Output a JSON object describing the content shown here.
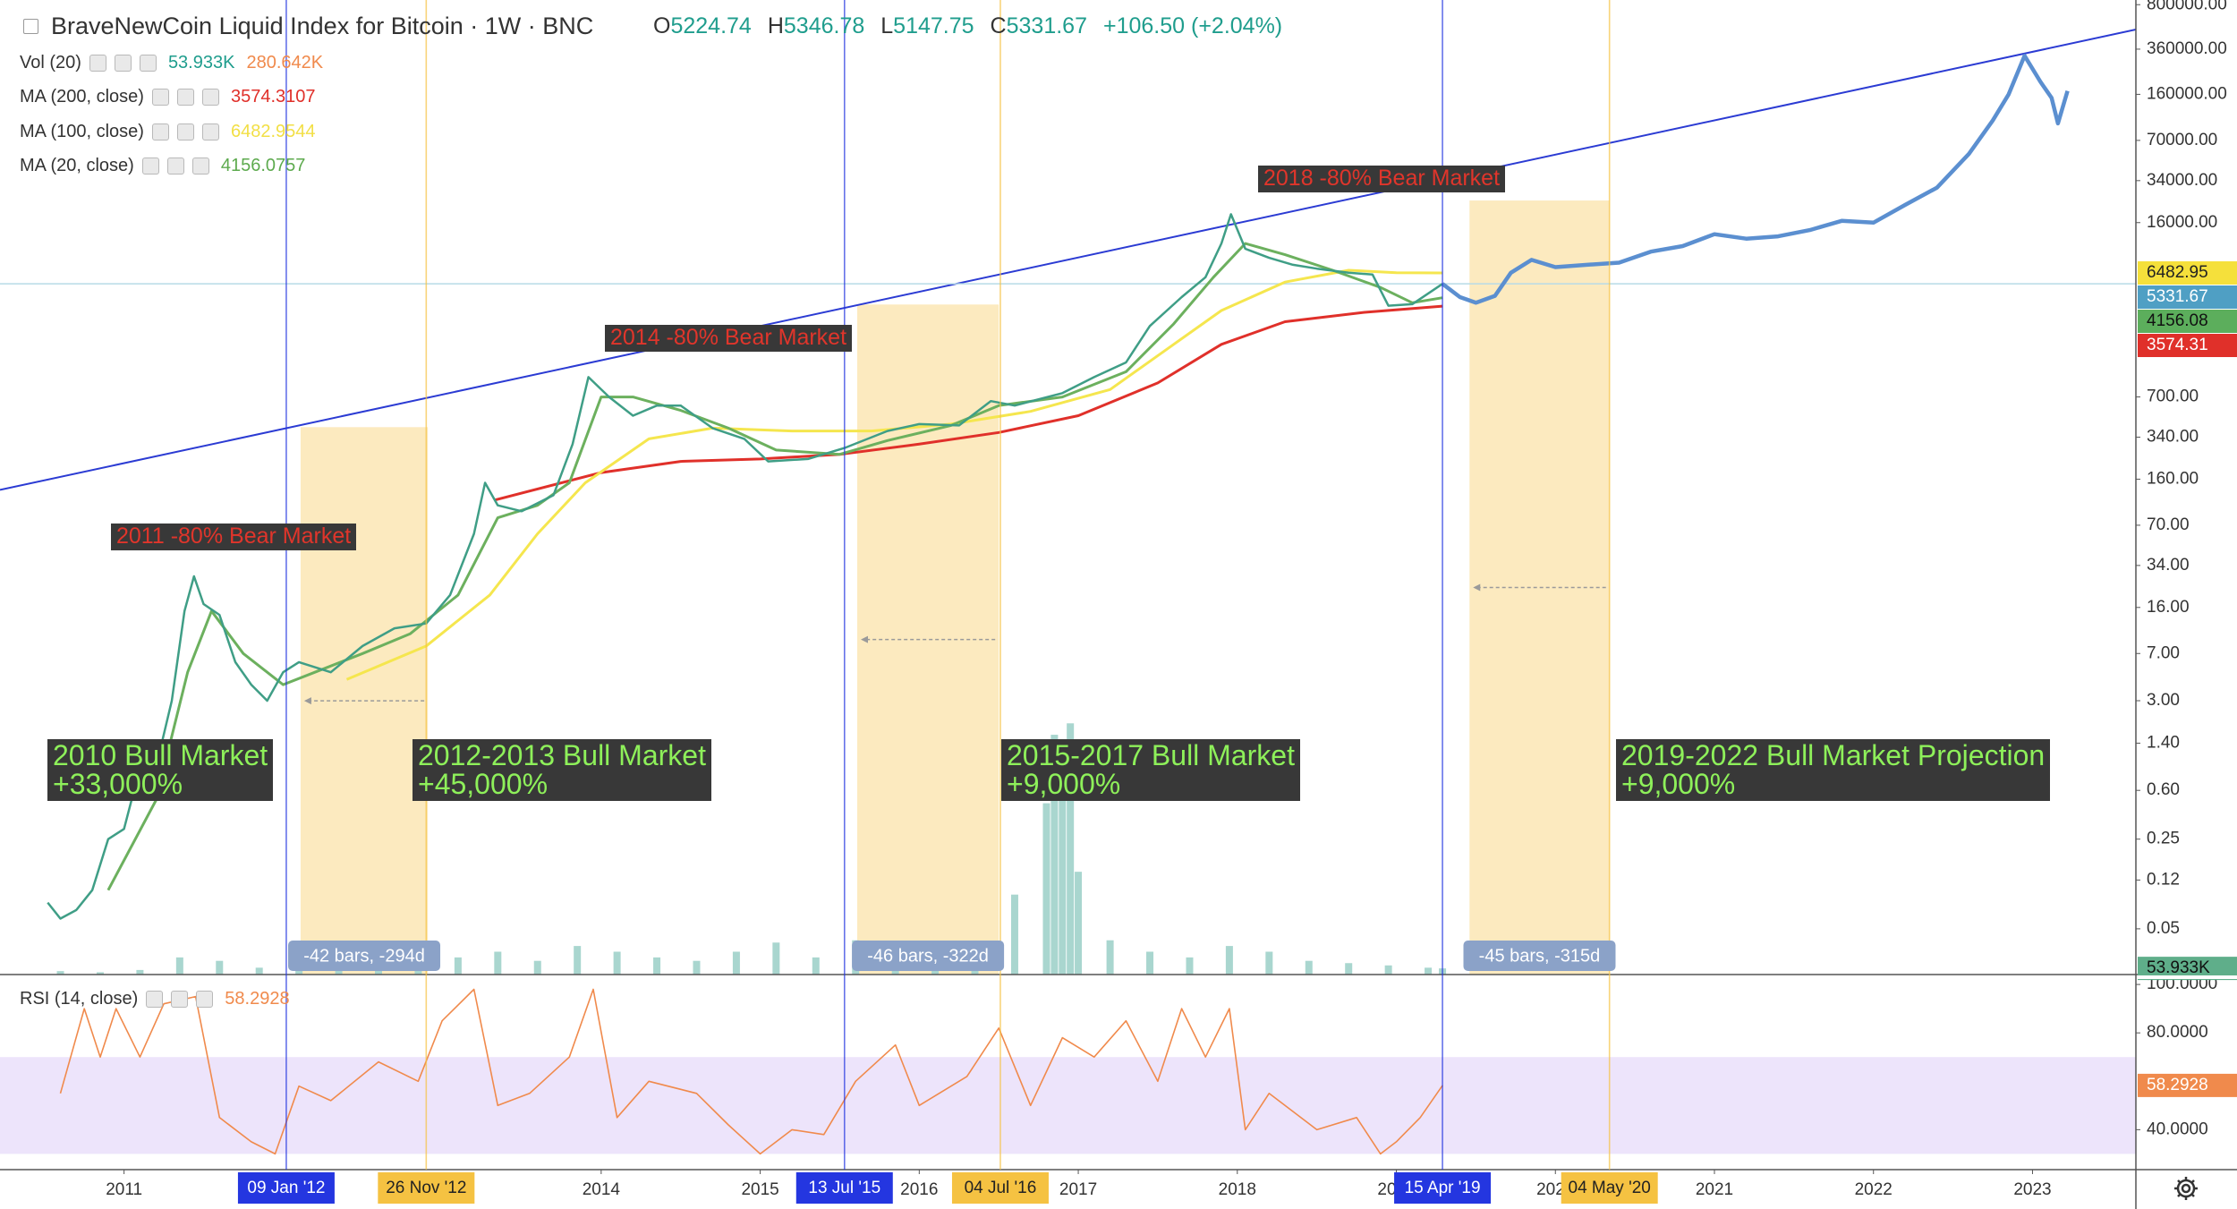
{
  "chart_data": {
    "type": "line",
    "scale": "log",
    "title": "BraveNewCoin Liquid Index for Bitcoin · 1W · BNC",
    "ohlc": [
      {
        "label": "O",
        "value": 5224.74
      },
      {
        "label": "H",
        "value": 5346.78
      },
      {
        "label": "L",
        "value": 5147.75
      },
      {
        "label": "C",
        "value": 5331.67
      }
    ],
    "change": "+106.50 (+2.04%)",
    "ohlc_color": "#1f9d8d",
    "xlim": [
      2010.22,
      2023.65
    ],
    "xticks": [
      2011,
      2014,
      2015,
      2016,
      2017,
      2018,
      2019,
      2020,
      2021,
      2022,
      2023
    ],
    "ylim": [
      0.022,
      870000
    ],
    "yticks": [
      0.05,
      0.12,
      0.25,
      {
        "value": 0.6,
        "label": "0.60"
      },
      {
        "value": 1.4,
        "label": "1.40"
      },
      {
        "value": 3,
        "label": "3.00"
      },
      {
        "value": 7,
        "label": "7.00"
      },
      {
        "value": 16,
        "label": "16.00"
      },
      {
        "value": 34,
        "label": "34.00"
      },
      {
        "value": 70,
        "label": "70.00"
      },
      {
        "value": 160,
        "label": "160.00"
      },
      {
        "value": 340,
        "label": "340.00"
      },
      {
        "value": 700,
        "label": "700.00"
      },
      {
        "value": 16000,
        "label": "16000.00"
      },
      {
        "value": 34000,
        "label": "34000.00"
      },
      {
        "value": 70000,
        "label": "70000.00"
      },
      {
        "value": 160000,
        "label": "160000.00"
      },
      {
        "value": 360000,
        "label": "360000.00"
      },
      {
        "value": 800000,
        "label": "800000.00"
      }
    ],
    "series": [
      {
        "color": "#3f9e86",
        "x": [
          2010.52,
          2010.6,
          2010.7,
          2010.8,
          2010.9,
          2011.0,
          2011.1,
          2011.2,
          2011.3,
          2011.38,
          2011.44,
          2011.5,
          2011.6,
          2011.7,
          2011.8,
          2011.9,
          2012.0,
          2012.1,
          2012.3,
          2012.5,
          2012.7,
          2012.9,
          2013.05,
          2013.2,
          2013.27,
          2013.35,
          2013.5,
          2013.7,
          2013.82,
          2013.92,
          2014.05,
          2014.2,
          2014.35,
          2014.5,
          2014.7,
          2014.9,
          2015.05,
          2015.3,
          2015.53,
          2015.8,
          2016.0,
          2016.25,
          2016.45,
          2016.6,
          2016.9,
          2017.1,
          2017.3,
          2017.45,
          2017.65,
          2017.8,
          2017.9,
          2017.96,
          2018.05,
          2018.2,
          2018.35,
          2018.5,
          2018.7,
          2018.85,
          2018.95,
          2019.1,
          2019.29
        ],
        "values": [
          0.08,
          0.06,
          0.07,
          0.1,
          0.25,
          0.3,
          0.9,
          0.9,
          3,
          15,
          28,
          17,
          14,
          6,
          4,
          3,
          5,
          6,
          5,
          8,
          11,
          12,
          20,
          60,
          150,
          100,
          90,
          120,
          300,
          1000,
          700,
          500,
          600,
          600,
          400,
          330,
          220,
          230,
          280,
          380,
          430,
          420,
          650,
          600,
          750,
          1000,
          1300,
          2500,
          4200,
          6000,
          11000,
          18600,
          10000,
          8500,
          7500,
          7000,
          6500,
          6300,
          3600,
          3700,
          5331.67
        ]
      },
      {
        "color": "#5b8fd0",
        "x": [
          2019.29,
          2019.4,
          2019.5,
          2019.62,
          2019.72,
          2019.85,
          2020.0,
          2020.2,
          2020.4,
          2020.6,
          2020.8,
          2021.0,
          2021.2,
          2021.4,
          2021.6,
          2021.8,
          2022.0,
          2022.2,
          2022.4,
          2022.6,
          2022.75,
          2022.85,
          2022.95,
          2023.05,
          2023.12,
          2023.16,
          2023.22
        ],
        "values": [
          5331.67,
          4200,
          3800,
          4300,
          6500,
          8200,
          7200,
          7500,
          7800,
          9500,
          10500,
          13000,
          12000,
          12500,
          14000,
          16500,
          16000,
          22000,
          30000,
          55000,
          100000,
          160000,
          320000,
          200000,
          150000,
          95000,
          170000
        ]
      }
    ],
    "indicators": [
      {
        "name": "Vol (20)",
        "readings": [
          "53.933K",
          "280.642K"
        ],
        "reading_colors": [
          "#1f9d8d",
          "#f08a4c"
        ],
        "color": "#a9d6cf",
        "ylim": [
          0,
          2500000
        ],
        "x": [
          2010.6,
          2010.85,
          2011.1,
          2011.35,
          2011.6,
          2011.85,
          2012.1,
          2012.35,
          2012.6,
          2012.85,
          2013.1,
          2013.35,
          2013.6,
          2013.85,
          2014.1,
          2014.35,
          2014.6,
          2014.85,
          2015.1,
          2015.35,
          2015.6,
          2015.85,
          2016.1,
          2016.35,
          2016.6,
          2016.8,
          2016.85,
          2016.9,
          2016.95,
          2017.0,
          2017.2,
          2017.45,
          2017.7,
          2017.95,
          2018.2,
          2018.45,
          2018.7,
          2018.95,
          2019.2,
          2019.29
        ],
        "values": [
          30000,
          20000,
          40000,
          150000,
          120000,
          60000,
          50000,
          60000,
          80000,
          90000,
          150000,
          200000,
          120000,
          250000,
          200000,
          150000,
          120000,
          200000,
          280000,
          150000,
          300000,
          250000,
          200000,
          150000,
          700000,
          1500000,
          2100000,
          1800000,
          2200000,
          900000,
          300000,
          200000,
          150000,
          250000,
          200000,
          120000,
          100000,
          80000,
          60000,
          53933
        ]
      },
      {
        "name": "MA (200, close)",
        "readings": [
          3574.3107
        ],
        "reading_colors": [
          "#e0302a"
        ],
        "color": "#e0302a",
        "x": [
          2013.33,
          2014.0,
          2014.5,
          2015.0,
          2015.5,
          2016.0,
          2016.5,
          2017.0,
          2017.5,
          2017.9,
          2018.3,
          2018.8,
          2019.29
        ],
        "values": [
          110,
          180,
          220,
          230,
          250,
          300,
          370,
          500,
          900,
          1800,
          2700,
          3200,
          3574.31
        ]
      },
      {
        "name": "MA (100, close)",
        "readings": [
          6482.9544
        ],
        "reading_colors": [
          "#f2df45"
        ],
        "color": "#f5e64e",
        "x": [
          2012.4,
          2012.9,
          2013.3,
          2013.6,
          2013.9,
          2014.3,
          2014.7,
          2015.2,
          2015.7,
          2016.2,
          2016.7,
          2017.2,
          2017.6,
          2017.9,
          2018.3,
          2018.7,
          2019.0,
          2019.29
        ],
        "values": [
          4.4,
          8,
          20,
          60,
          150,
          330,
          400,
          380,
          380,
          430,
          540,
          800,
          1800,
          3300,
          5500,
          6800,
          6500,
          6482.95
        ]
      },
      {
        "name": "MA (20, close)",
        "readings": [
          4156.0757
        ],
        "reading_colors": [
          "#5daa4e"
        ],
        "color": "#6cb05e",
        "x": [
          2010.9,
          2011.2,
          2011.4,
          2011.55,
          2011.75,
          2012.0,
          2012.2,
          2012.5,
          2012.8,
          2013.1,
          2013.35,
          2013.6,
          2013.8,
          2014.0,
          2014.2,
          2014.5,
          2014.8,
          2015.1,
          2015.5,
          2015.8,
          2016.2,
          2016.5,
          2016.9,
          2017.3,
          2017.6,
          2017.85,
          2018.05,
          2018.3,
          2018.6,
          2018.9,
          2019.1,
          2019.29
        ],
        "values": [
          0.1,
          0.5,
          5,
          15,
          7,
          4,
          5,
          7,
          10,
          20,
          80,
          100,
          150,
          700,
          700,
          550,
          400,
          270,
          250,
          320,
          420,
          600,
          700,
          1100,
          2600,
          6000,
          11000,
          9000,
          6800,
          5000,
          3800,
          4156.08
        ]
      }
    ],
    "price_labels": [
      {
        "value": 6482.95,
        "color": "#f5e03b",
        "text_color": "#222222"
      },
      {
        "value": 5331.67,
        "color": "#4f9fc4",
        "text_color": "#ffffff",
        "line_color": "#b7dbe6"
      },
      {
        "value": 4156.08,
        "color": "#5cae5c",
        "text_color": "#111111"
      },
      {
        "value": 3574.31,
        "color": "#e0302a",
        "text_color": "#ffffff"
      }
    ],
    "vol_label": {
      "value": 53933,
      "label": "53.933K",
      "color": "#5fae8a"
    },
    "trendline": {
      "x": [
        2010.22,
        2023.65
      ],
      "y": [
        132,
        512000
      ],
      "color": "#2b3bd3"
    },
    "annotations": [
      {
        "lines": [
          "2011 -80% Bear Market"
        ],
        "color": "#e0352b",
        "background": "#383838"
      },
      {
        "lines": [
          "2014 -80% Bear Market"
        ],
        "color": "#e0352b",
        "background": "#383838"
      },
      {
        "lines": [
          "2018 -80% Bear Market"
        ],
        "color": "#e0352b",
        "background": "#383838"
      },
      {
        "lines": [
          "2010 Bull Market",
          "+33,000%"
        ],
        "color": "#8ef05a",
        "background": "#383838"
      },
      {
        "lines": [
          "2012-2013 Bull Market",
          "+45,000%"
        ],
        "color": "#8ef05a",
        "background": "#383838"
      },
      {
        "lines": [
          "2015-2017 Bull Market",
          "+9,000%"
        ],
        "color": "#8ef05a",
        "background": "#383838"
      },
      {
        "lines": [
          "2019-2022 Bull Market Projection",
          "+9,000%"
        ],
        "color": "#8ef05a",
        "background": "#383838"
      }
    ],
    "date_markers": [
      {
        "label": "09 Jan '12",
        "x": 2012.02,
        "color": "#2436e0",
        "text_color": "#ffffff"
      },
      {
        "label": "26 Nov '12",
        "x": 2012.9,
        "color": "#f5c242",
        "text_color": "#222222"
      },
      {
        "label": "13 Jul '15",
        "x": 2015.53,
        "color": "#2436e0",
        "text_color": "#ffffff"
      },
      {
        "label": "04 Jul '16",
        "x": 2016.51,
        "color": "#f5c242",
        "text_color": "#222222"
      },
      {
        "label": "15 Apr '19",
        "x": 2019.29,
        "color": "#2436e0",
        "text_color": "#ffffff"
      },
      {
        "label": "04 May '20",
        "x": 2020.34,
        "color": "#f5c242",
        "text_color": "#222222"
      }
    ],
    "ranges": [
      {
        "from": 2012.11,
        "to": 2012.91,
        "top": 407,
        "label": "-42 bars, -294d",
        "color": "#fbe6b4"
      },
      {
        "from": 2015.61,
        "to": 2016.5,
        "top": 3680,
        "label": "-46 bars, -322d",
        "color": "#fbe6b4"
      },
      {
        "from": 2019.46,
        "to": 2020.34,
        "top": 23800,
        "label": "-45 bars, -315d",
        "color": "#fbe6b4"
      }
    ],
    "rsi": {
      "name": "RSI (14, close)",
      "reading": 58.2928,
      "color": "#f08a4c",
      "ylim": [
        23.5,
        104.1
      ],
      "yticks": [
        {
          "value": 100,
          "label": "100.0000"
        },
        {
          "value": 80,
          "label": "80.0000"
        },
        {
          "value": 40,
          "label": "40.0000"
        }
      ],
      "band": [
        30,
        70
      ],
      "band_color": "#ede4fb",
      "x": [
        2010.6,
        2010.75,
        2010.85,
        2010.95,
        2011.1,
        2011.25,
        2011.45,
        2011.6,
        2011.8,
        2011.95,
        2012.1,
        2012.3,
        2012.6,
        2012.85,
        2013.0,
        2013.2,
        2013.35,
        2013.55,
        2013.8,
        2013.95,
        2014.1,
        2014.3,
        2014.6,
        2014.8,
        2015.0,
        2015.2,
        2015.4,
        2015.6,
        2015.85,
        2016.0,
        2016.3,
        2016.5,
        2016.7,
        2016.9,
        2017.1,
        2017.3,
        2017.5,
        2017.65,
        2017.8,
        2017.95,
        2018.05,
        2018.2,
        2018.5,
        2018.75,
        2018.9,
        2019.0,
        2019.15,
        2019.29
      ],
      "values": [
        55,
        90,
        70,
        90,
        70,
        92,
        95,
        45,
        35,
        30,
        58,
        52,
        68,
        60,
        85,
        98,
        50,
        55,
        70,
        98,
        45,
        60,
        55,
        42,
        30,
        40,
        38,
        60,
        75,
        50,
        62,
        82,
        50,
        78,
        70,
        85,
        60,
        90,
        70,
        90,
        40,
        55,
        40,
        45,
        30,
        35,
        45,
        58.2928
      ]
    }
  }
}
